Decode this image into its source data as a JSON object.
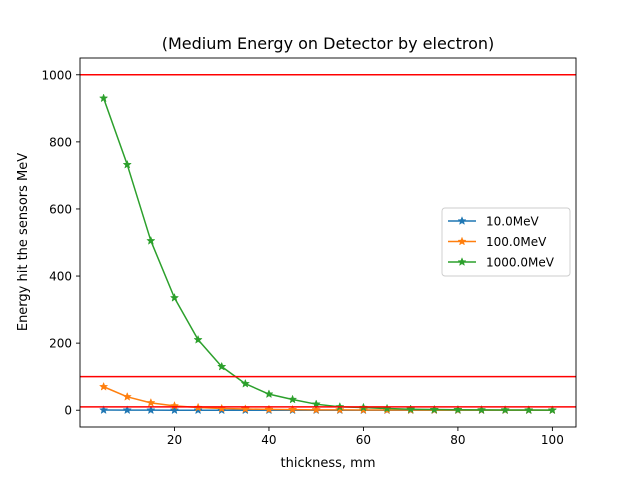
{
  "chart_data": {
    "type": "line",
    "title": "(Medium Energy on Detector by electron)",
    "xlabel": "thickness, mm",
    "ylabel": "Energy hit the sensors MeV",
    "xlim": [
      0,
      105
    ],
    "ylim": [
      -50,
      1050
    ],
    "xticks": [
      20,
      40,
      60,
      80,
      100
    ],
    "yticks": [
      0,
      200,
      400,
      600,
      800,
      1000
    ],
    "hlines": [
      {
        "y": 1000,
        "color": "#ff0000"
      },
      {
        "y": 100,
        "color": "#ff0000"
      },
      {
        "y": 10,
        "color": "#ff0000"
      }
    ],
    "legend_position": "center-right",
    "x": [
      5,
      10,
      15,
      20,
      25,
      30,
      35,
      40,
      45,
      50,
      55,
      60,
      65,
      70,
      75,
      80,
      85,
      90,
      95,
      100
    ],
    "series": [
      {
        "name": "10.0MeV",
        "color": "#1f77b4",
        "marker": "star",
        "values": [
          0.5,
          0.3,
          0.2,
          0.1,
          0.1,
          0.05,
          0.05,
          0,
          0,
          0,
          0,
          0,
          0,
          0,
          0,
          0,
          0,
          0,
          0,
          0
        ]
      },
      {
        "name": "100.0MeV",
        "color": "#ff7f0e",
        "marker": "star",
        "values": [
          70,
          40,
          22,
          13,
          8,
          5,
          3.5,
          2.5,
          1.8,
          1.2,
          1,
          0.8,
          0.6,
          0.5,
          0.4,
          0.3,
          0.3,
          0.2,
          0.2,
          0.2
        ]
      },
      {
        "name": "1000.0MeV",
        "color": "#2ca02c",
        "marker": "star",
        "values": [
          930,
          732,
          505,
          335,
          210,
          130,
          79,
          48,
          32,
          18,
          10,
          8,
          5,
          3,
          2,
          1.5,
          1,
          0.8,
          0.5,
          0.3
        ]
      }
    ]
  }
}
